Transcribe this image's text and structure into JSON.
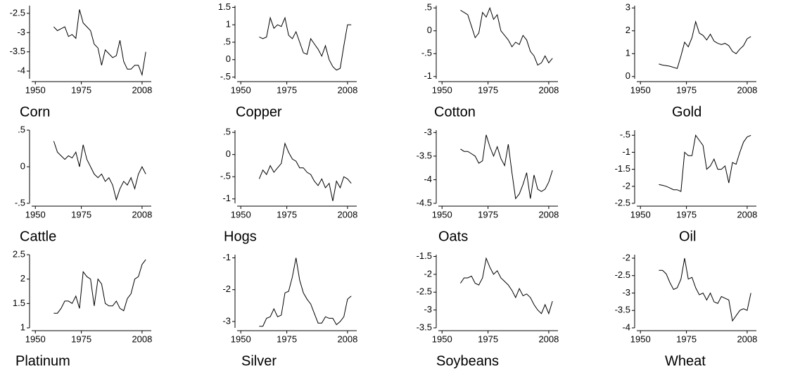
{
  "chart_data": [
    {
      "type": "line",
      "title": "Corn",
      "x": [
        1960,
        1962,
        1964,
        1966,
        1968,
        1970,
        1972,
        1974,
        1976,
        1978,
        1980,
        1982,
        1984,
        1986,
        1988,
        1990,
        1992,
        1994,
        1996,
        1998,
        2000,
        2002,
        2004,
        2006,
        2008,
        2010
      ],
      "values": [
        -2.85,
        -2.95,
        -2.9,
        -2.85,
        -3.1,
        -3.05,
        -3.15,
        -2.4,
        -2.75,
        -2.85,
        -2.95,
        -3.3,
        -3.4,
        -3.85,
        -3.45,
        -3.55,
        -3.65,
        -3.6,
        -3.2,
        -3.75,
        -3.95,
        -3.95,
        -3.85,
        -3.85,
        -4.1,
        -3.5
      ],
      "color": "#000000",
      "xlim": [
        1948,
        2013
      ],
      "xticks": [
        1950,
        1975,
        2008
      ],
      "ylim": [
        -4.2,
        -2.3
      ],
      "yticks": [
        -2.5,
        -3,
        -3.5,
        -4
      ]
    },
    {
      "type": "line",
      "title": "Copper",
      "x": [
        1960,
        1962,
        1964,
        1966,
        1968,
        1970,
        1972,
        1974,
        1976,
        1978,
        1980,
        1982,
        1984,
        1986,
        1988,
        1990,
        1992,
        1994,
        1996,
        1998,
        2000,
        2002,
        2004,
        2006,
        2008,
        2010
      ],
      "values": [
        0.65,
        0.6,
        0.65,
        1.2,
        0.9,
        1.0,
        0.95,
        1.2,
        0.7,
        0.6,
        0.8,
        0.5,
        0.2,
        0.15,
        0.6,
        0.45,
        0.3,
        0.1,
        0.4,
        0.0,
        -0.2,
        -0.3,
        -0.25,
        0.4,
        1.0,
        1.0
      ],
      "color": "#000000",
      "xlim": [
        1948,
        2013
      ],
      "xticks": [
        1950,
        1975,
        2008
      ],
      "ylim": [
        -0.55,
        1.55
      ],
      "yticks": [
        1.5,
        1,
        {
          "value": 0.5,
          "label": ".5"
        },
        0,
        {
          "value": -0.5,
          "label": "-.5"
        }
      ]
    },
    {
      "type": "line",
      "title": "Cotton",
      "x": [
        1960,
        1962,
        1964,
        1966,
        1968,
        1970,
        1972,
        1974,
        1976,
        1978,
        1980,
        1982,
        1984,
        1986,
        1988,
        1990,
        1992,
        1994,
        1996,
        1998,
        2000,
        2002,
        2004,
        2006,
        2008,
        2010
      ],
      "values": [
        0.45,
        0.4,
        0.35,
        0.1,
        -0.15,
        -0.05,
        0.4,
        0.3,
        0.5,
        0.25,
        0.35,
        0.0,
        -0.1,
        -0.2,
        -0.35,
        -0.25,
        -0.3,
        -0.1,
        -0.2,
        -0.45,
        -0.55,
        -0.75,
        -0.7,
        -0.55,
        -0.7,
        -0.6
      ],
      "color": "#000000",
      "xlim": [
        1948,
        2013
      ],
      "xticks": [
        1950,
        1975,
        2008
      ],
      "ylim": [
        -1.05,
        0.55
      ],
      "yticks": [
        {
          "value": 0.5,
          "label": ".5"
        },
        0,
        {
          "value": -0.5,
          "label": "-.5"
        },
        -1
      ]
    },
    {
      "type": "line",
      "title": "Gold",
      "x": [
        1960,
        1962,
        1964,
        1966,
        1968,
        1970,
        1972,
        1974,
        1976,
        1978,
        1980,
        1982,
        1984,
        1986,
        1988,
        1990,
        1992,
        1994,
        1996,
        1998,
        2000,
        2002,
        2004,
        2006,
        2008,
        2010
      ],
      "values": [
        0.55,
        0.5,
        0.48,
        0.45,
        0.4,
        0.35,
        0.9,
        1.5,
        1.3,
        1.7,
        2.4,
        1.9,
        1.8,
        1.6,
        1.85,
        1.55,
        1.45,
        1.4,
        1.45,
        1.35,
        1.1,
        1.0,
        1.2,
        1.35,
        1.65,
        1.75
      ],
      "color": "#000000",
      "xlim": [
        1948,
        2013
      ],
      "xticks": [
        1950,
        1975,
        2008
      ],
      "ylim": [
        -0.1,
        3.1
      ],
      "yticks": [
        3,
        2,
        1,
        0
      ]
    },
    {
      "type": "line",
      "title": "Cattle",
      "x": [
        1960,
        1962,
        1964,
        1966,
        1968,
        1970,
        1972,
        1974,
        1976,
        1978,
        1980,
        1982,
        1984,
        1986,
        1988,
        1990,
        1992,
        1994,
        1996,
        1998,
        2000,
        2002,
        2004,
        2006,
        2008,
        2010
      ],
      "values": [
        0.35,
        0.2,
        0.15,
        0.1,
        0.15,
        0.12,
        0.2,
        0.0,
        0.3,
        0.1,
        0.0,
        -0.1,
        -0.15,
        -0.1,
        -0.2,
        -0.15,
        -0.25,
        -0.45,
        -0.3,
        -0.2,
        -0.25,
        -0.15,
        -0.3,
        -0.1,
        0.0,
        -0.1
      ],
      "color": "#000000",
      "xlim": [
        1948,
        2013
      ],
      "xticks": [
        1950,
        1975,
        2008
      ],
      "ylim": [
        -0.5,
        0.5
      ],
      "yticks": [
        {
          "value": 0.5,
          "label": ".5"
        },
        0,
        {
          "value": -0.5,
          "label": "-.5"
        }
      ]
    },
    {
      "type": "line",
      "title": "Hogs",
      "x": [
        1960,
        1962,
        1964,
        1966,
        1968,
        1970,
        1972,
        1974,
        1976,
        1978,
        1980,
        1982,
        1984,
        1986,
        1988,
        1990,
        1992,
        1994,
        1996,
        1998,
        2000,
        2002,
        2004,
        2006,
        2008,
        2010
      ],
      "values": [
        -0.55,
        -0.35,
        -0.45,
        -0.25,
        -0.4,
        -0.3,
        -0.2,
        0.25,
        0.05,
        -0.1,
        -0.15,
        -0.3,
        -0.3,
        -0.4,
        -0.45,
        -0.6,
        -0.7,
        -0.55,
        -0.75,
        -0.65,
        -1.05,
        -0.6,
        -0.75,
        -0.5,
        -0.55,
        -0.65
      ],
      "color": "#000000",
      "xlim": [
        1948,
        2013
      ],
      "xticks": [
        1950,
        1975,
        2008
      ],
      "ylim": [
        -1.1,
        0.55
      ],
      "yticks": [
        {
          "value": 0.5,
          "label": ".5"
        },
        0,
        {
          "value": -0.5,
          "label": "-.5"
        },
        -1
      ]
    },
    {
      "type": "line",
      "title": "Oats",
      "x": [
        1960,
        1962,
        1964,
        1966,
        1968,
        1970,
        1972,
        1974,
        1976,
        1978,
        1980,
        1982,
        1984,
        1986,
        1988,
        1990,
        1992,
        1994,
        1996,
        1998,
        2000,
        2002,
        2004,
        2006,
        2008,
        2010
      ],
      "values": [
        -3.35,
        -3.4,
        -3.4,
        -3.45,
        -3.5,
        -3.65,
        -3.6,
        -3.05,
        -3.3,
        -3.5,
        -3.3,
        -3.55,
        -3.7,
        -3.25,
        -3.85,
        -4.4,
        -4.3,
        -4.1,
        -3.85,
        -4.4,
        -3.9,
        -4.2,
        -4.25,
        -4.2,
        -4.05,
        -3.8
      ],
      "color": "#000000",
      "xlim": [
        1948,
        2013
      ],
      "xticks": [
        1950,
        1975,
        2008
      ],
      "ylim": [
        -4.5,
        -2.95
      ],
      "yticks": [
        -3,
        -3.5,
        -4,
        -4.5
      ]
    },
    {
      "type": "line",
      "title": "Oil",
      "x": [
        1960,
        1962,
        1964,
        1966,
        1968,
        1970,
        1972,
        1974,
        1976,
        1978,
        1980,
        1982,
        1984,
        1986,
        1988,
        1990,
        1992,
        1994,
        1996,
        1998,
        2000,
        2002,
        2004,
        2006,
        2008,
        2010
      ],
      "values": [
        -1.95,
        -1.97,
        -2.0,
        -2.05,
        -2.1,
        -2.1,
        -2.15,
        -1.0,
        -1.1,
        -1.1,
        -0.5,
        -0.65,
        -0.8,
        -1.5,
        -1.4,
        -1.2,
        -1.5,
        -1.5,
        -1.4,
        -1.9,
        -1.3,
        -1.35,
        -1.0,
        -0.7,
        -0.55,
        -0.5
      ],
      "color": "#000000",
      "xlim": [
        1948,
        2013
      ],
      "xticks": [
        1950,
        1975,
        2008
      ],
      "ylim": [
        -2.5,
        -0.35
      ],
      "yticks": [
        {
          "value": -0.5,
          "label": "-.5"
        },
        -1,
        -1.5,
        -2,
        -2.5
      ]
    },
    {
      "type": "line",
      "title": "Platinum",
      "x": [
        1960,
        1962,
        1964,
        1966,
        1968,
        1970,
        1972,
        1974,
        1976,
        1978,
        1980,
        1982,
        1984,
        1986,
        1988,
        1990,
        1992,
        1994,
        1996,
        1998,
        2000,
        2002,
        2004,
        2006,
        2008,
        2010
      ],
      "values": [
        1.3,
        1.3,
        1.4,
        1.55,
        1.55,
        1.5,
        1.65,
        1.4,
        2.15,
        2.05,
        2.0,
        1.45,
        2.0,
        1.9,
        1.5,
        1.45,
        1.45,
        1.55,
        1.4,
        1.35,
        1.6,
        1.7,
        2.0,
        2.05,
        2.3,
        2.4
      ],
      "color": "#000000",
      "xlim": [
        1948,
        2013
      ],
      "xticks": [
        1950,
        1975,
        2008
      ],
      "ylim": [
        1,
        2.5
      ],
      "yticks": [
        2.5,
        2,
        1.5,
        1
      ]
    },
    {
      "type": "line",
      "title": "Silver",
      "x": [
        1960,
        1962,
        1964,
        1966,
        1968,
        1970,
        1972,
        1974,
        1976,
        1978,
        1980,
        1982,
        1984,
        1986,
        1988,
        1990,
        1992,
        1994,
        1996,
        1998,
        2000,
        2002,
        2004,
        2006,
        2008,
        2010
      ],
      "values": [
        -3.15,
        -3.15,
        -2.9,
        -2.85,
        -2.6,
        -2.85,
        -2.8,
        -2.1,
        -2.05,
        -1.6,
        -1.0,
        -1.7,
        -2.1,
        -2.3,
        -2.45,
        -2.75,
        -3.05,
        -3.05,
        -2.85,
        -2.9,
        -2.9,
        -3.1,
        -3.0,
        -2.85,
        -2.3,
        -2.2
      ],
      "color": "#000000",
      "xlim": [
        1948,
        2013
      ],
      "xticks": [
        1950,
        1975,
        2008
      ],
      "ylim": [
        -3.2,
        -0.9
      ],
      "yticks": [
        -1,
        -2,
        -3
      ]
    },
    {
      "type": "line",
      "title": "Soybeans",
      "x": [
        1960,
        1962,
        1964,
        1966,
        1968,
        1970,
        1972,
        1974,
        1976,
        1978,
        1980,
        1982,
        1984,
        1986,
        1988,
        1990,
        1992,
        1994,
        1996,
        1998,
        2000,
        2002,
        2004,
        2006,
        2008,
        2010
      ],
      "values": [
        -2.25,
        -2.1,
        -2.1,
        -2.05,
        -2.25,
        -2.3,
        -2.1,
        -1.55,
        -1.8,
        -2.0,
        -1.9,
        -2.1,
        -2.2,
        -2.3,
        -2.45,
        -2.65,
        -2.4,
        -2.6,
        -2.55,
        -2.65,
        -2.85,
        -3.0,
        -3.1,
        -2.85,
        -3.1,
        -2.75
      ],
      "color": "#000000",
      "xlim": [
        1948,
        2013
      ],
      "xticks": [
        1950,
        1975,
        2008
      ],
      "ylim": [
        -3.5,
        -1.45
      ],
      "yticks": [
        -1.5,
        -2,
        -2.5,
        -3,
        -3.5
      ]
    },
    {
      "type": "line",
      "title": "Wheat",
      "x": [
        1960,
        1962,
        1964,
        1966,
        1968,
        1970,
        1972,
        1974,
        1976,
        1978,
        1980,
        1982,
        1984,
        1986,
        1988,
        1990,
        1992,
        1994,
        1996,
        1998,
        2000,
        2002,
        2004,
        2006,
        2008,
        2010
      ],
      "values": [
        -2.35,
        -2.35,
        -2.45,
        -2.7,
        -2.9,
        -2.85,
        -2.6,
        -2.0,
        -2.6,
        -2.55,
        -2.85,
        -3.05,
        -3.0,
        -3.2,
        -3.0,
        -3.25,
        -3.3,
        -3.1,
        -3.15,
        -3.2,
        -3.8,
        -3.65,
        -3.5,
        -3.45,
        -3.5,
        -3.0
      ],
      "color": "#000000",
      "xlim": [
        1948,
        2013
      ],
      "xticks": [
        1950,
        1975,
        2008
      ],
      "ylim": [
        -4,
        -1.9
      ],
      "yticks": [
        -2,
        -2.5,
        -3,
        -3.5,
        -4
      ]
    }
  ]
}
